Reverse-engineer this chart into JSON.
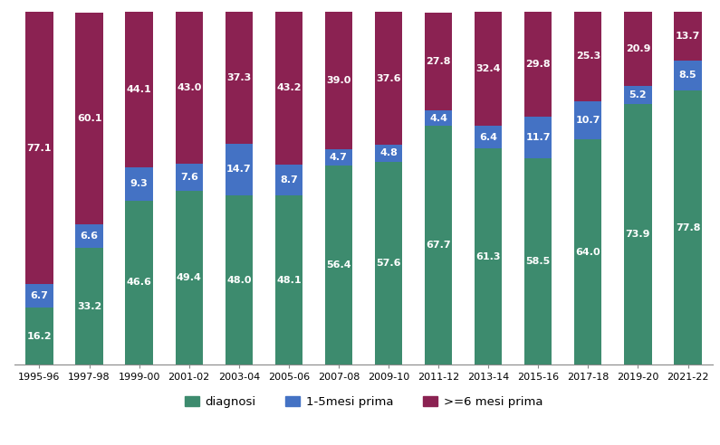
{
  "categories": [
    "1995-96",
    "1997-98",
    "1999-00",
    "2001-02",
    "2003-04",
    "2005-06",
    "2007-08",
    "2009-10",
    "2011-12",
    "2013-14",
    "2015-16",
    "2017-18",
    "2019-20",
    "2021-22"
  ],
  "diagnosi": [
    16.2,
    33.2,
    46.6,
    49.4,
    48.0,
    48.1,
    56.4,
    57.6,
    67.7,
    61.3,
    58.5,
    64.0,
    73.9,
    77.8
  ],
  "mesi_1_5": [
    6.7,
    6.6,
    9.3,
    7.6,
    14.7,
    8.7,
    4.7,
    4.8,
    4.4,
    6.4,
    11.7,
    10.7,
    5.2,
    8.5
  ],
  "mesi_6p": [
    77.1,
    60.1,
    44.1,
    43.0,
    37.3,
    43.2,
    39.0,
    37.6,
    27.8,
    32.4,
    29.8,
    25.3,
    20.9,
    13.7
  ],
  "color_diagnosi": "#3d8b6e",
  "color_mesi_1_5": "#4472c4",
  "color_mesi_6p": "#8b2252",
  "legend_labels": [
    "diagnosi",
    "1-5mesi prima",
    ">=6 mesi prima"
  ],
  "label_fontsize": 8,
  "tick_fontsize": 8,
  "legend_fontsize": 9.5,
  "bar_width": 0.55
}
